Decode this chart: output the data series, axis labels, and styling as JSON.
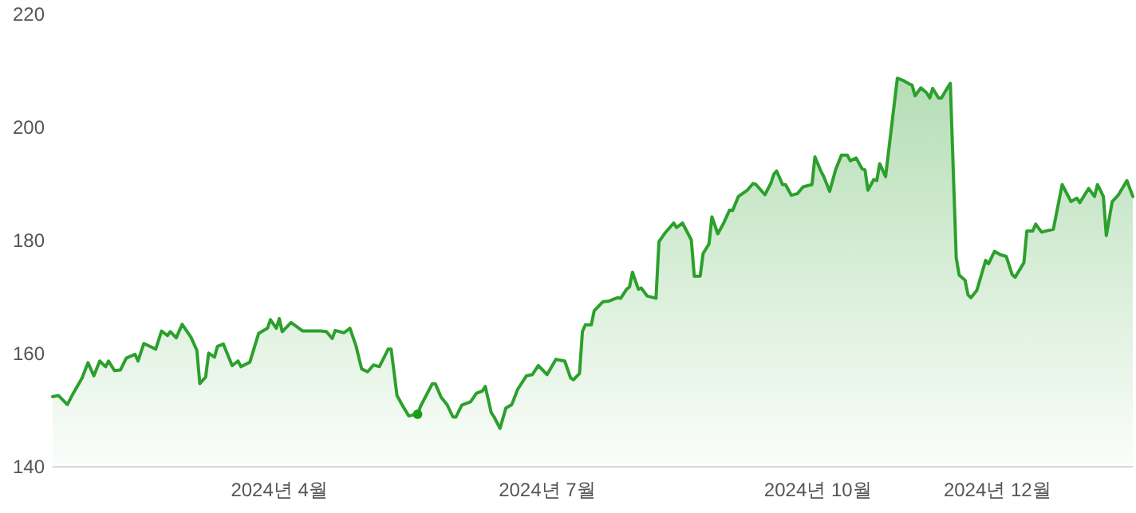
{
  "chart_data": {
    "type": "area",
    "xlim": [
      "2024-01-15",
      "2025-01-16"
    ],
    "ylim": [
      140,
      220
    ],
    "yticks": [
      140,
      160,
      180,
      200,
      220
    ],
    "xticks": [
      {
        "value": "2024-04-01",
        "label": "2024년 4월"
      },
      {
        "value": "2024-07-01",
        "label": "2024년 7월"
      },
      {
        "value": "2024-10-01",
        "label": "2024년 10월"
      },
      {
        "value": "2024-12-01",
        "label": "2024년 12월"
      }
    ],
    "grid": false,
    "series": [
      {
        "color": "#2ca02c",
        "x": [
          "2024-01-15",
          "2024-01-17",
          "2024-01-20",
          "2024-01-22",
          "2024-01-25",
          "2024-01-27",
          "2024-01-29",
          "2024-01-31",
          "2024-02-02",
          "2024-02-03",
          "2024-02-05",
          "2024-02-07",
          "2024-02-09",
          "2024-02-12",
          "2024-02-13",
          "2024-02-15",
          "2024-02-19",
          "2024-02-21",
          "2024-02-23",
          "2024-02-24",
          "2024-02-26",
          "2024-02-28",
          "2024-03-02",
          "2024-03-04",
          "2024-03-05",
          "2024-03-07",
          "2024-03-08",
          "2024-03-10",
          "2024-03-11",
          "2024-03-13",
          "2024-03-16",
          "2024-03-18",
          "2024-03-19",
          "2024-03-22",
          "2024-03-25",
          "2024-03-28",
          "2024-03-29",
          "2024-03-31",
          "2024-04-01",
          "2024-04-02",
          "2024-04-05",
          "2024-04-09",
          "2024-04-15",
          "2024-04-17",
          "2024-04-19",
          "2024-04-20",
          "2024-04-23",
          "2024-04-25",
          "2024-04-27",
          "2024-04-29",
          "2024-05-01",
          "2024-05-03",
          "2024-05-05",
          "2024-05-08",
          "2024-05-09",
          "2024-05-11",
          "2024-05-13",
          "2024-05-15",
          "2024-05-18",
          "2024-05-19",
          "2024-05-23",
          "2024-05-24",
          "2024-05-26",
          "2024-05-28",
          "2024-05-30",
          "2024-05-31",
          "2024-06-02",
          "2024-06-05",
          "2024-06-07",
          "2024-06-09",
          "2024-06-10",
          "2024-06-12",
          "2024-06-13",
          "2024-06-15",
          "2024-06-17",
          "2024-06-19",
          "2024-06-21",
          "2024-06-24",
          "2024-06-26",
          "2024-06-28",
          "2024-07-01",
          "2024-07-04",
          "2024-07-07",
          "2024-07-09",
          "2024-07-10",
          "2024-07-12",
          "2024-07-13",
          "2024-07-14",
          "2024-07-16",
          "2024-07-17",
          "2024-07-20",
          "2024-07-22",
          "2024-07-25",
          "2024-07-26",
          "2024-07-28",
          "2024-07-29",
          "2024-07-30",
          "2024-08-01",
          "2024-08-02",
          "2024-08-04",
          "2024-08-07",
          "2024-08-08",
          "2024-08-10",
          "2024-08-13",
          "2024-08-14",
          "2024-08-16",
          "2024-08-19",
          "2024-08-20",
          "2024-08-22",
          "2024-08-23",
          "2024-08-25",
          "2024-08-26",
          "2024-08-28",
          "2024-08-30",
          "2024-09-01",
          "2024-09-02",
          "2024-09-04",
          "2024-09-07",
          "2024-09-09",
          "2024-09-10",
          "2024-09-13",
          "2024-09-15",
          "2024-09-16",
          "2024-09-17",
          "2024-09-19",
          "2024-09-20",
          "2024-09-22",
          "2024-09-24",
          "2024-09-26",
          "2024-09-29",
          "2024-09-30",
          "2024-10-02",
          "2024-10-03",
          "2024-10-05",
          "2024-10-07",
          "2024-10-09",
          "2024-10-11",
          "2024-10-12",
          "2024-10-14",
          "2024-10-16",
          "2024-10-17",
          "2024-10-18",
          "2024-10-20",
          "2024-10-21",
          "2024-10-22",
          "2024-10-24",
          "2024-10-28",
          "2024-10-30",
          "2024-11-01",
          "2024-11-02",
          "2024-11-03",
          "2024-11-05",
          "2024-11-07",
          "2024-11-08",
          "2024-11-09",
          "2024-11-11",
          "2024-11-12",
          "2024-11-14",
          "2024-11-15",
          "2024-11-17",
          "2024-11-18",
          "2024-11-20",
          "2024-11-21",
          "2024-11-22",
          "2024-11-24",
          "2024-11-27",
          "2024-11-28",
          "2024-11-30",
          "2024-12-02",
          "2024-12-04",
          "2024-12-06",
          "2024-12-07",
          "2024-12-10",
          "2024-12-11",
          "2024-12-13",
          "2024-12-14",
          "2024-12-16",
          "2024-12-20",
          "2024-12-23",
          "2024-12-26",
          "2024-12-28",
          "2024-12-29",
          "2025-01-01",
          "2025-01-03",
          "2025-01-04",
          "2025-01-06",
          "2025-01-07",
          "2025-01-09",
          "2025-01-11",
          "2025-01-14",
          "2025-01-16"
        ],
        "values": [
          152.4,
          152.6,
          151.0,
          153.0,
          155.7,
          158.4,
          156.1,
          158.7,
          157.7,
          158.7,
          157.0,
          157.1,
          159.2,
          159.9,
          158.7,
          161.8,
          160.8,
          164.0,
          163.2,
          163.9,
          162.8,
          165.2,
          162.9,
          160.6,
          154.7,
          155.9,
          160.1,
          159.4,
          161.3,
          161.7,
          157.9,
          158.7,
          157.7,
          158.5,
          163.6,
          164.5,
          166.0,
          164.5,
          166.2,
          163.9,
          165.5,
          164.0,
          164.0,
          163.9,
          162.7,
          164.1,
          163.7,
          164.5,
          161.5,
          157.3,
          156.8,
          158.0,
          157.7,
          160.8,
          160.8,
          152.6,
          150.7,
          149.0,
          149.3,
          150.7,
          154.7,
          154.7,
          152.3,
          151.0,
          148.8,
          148.8,
          150.9,
          151.5,
          153.0,
          153.4,
          154.2,
          149.6,
          148.8,
          146.8,
          150.4,
          151.0,
          153.7,
          156.1,
          156.3,
          157.9,
          156.3,
          159.0,
          158.7,
          155.7,
          155.4,
          156.5,
          163.9,
          165.1,
          165.1,
          167.6,
          169.2,
          169.3,
          169.9,
          169.8,
          171.4,
          171.8,
          174.4,
          171.4,
          171.6,
          170.2,
          169.8,
          179.8,
          181.3,
          183.1,
          182.3,
          183.1,
          180.1,
          173.7,
          173.7,
          177.7,
          179.4,
          184.2,
          181.2,
          183.1,
          185.4,
          185.3,
          187.8,
          188.9,
          190.1,
          189.9,
          188.1,
          190.1,
          191.7,
          192.3,
          189.9,
          189.9,
          188.0,
          188.3,
          189.5,
          189.9,
          194.8,
          192.3,
          191.3,
          188.7,
          192.5,
          195.1,
          195.1,
          194.1,
          194.6,
          192.7,
          192.5,
          188.9,
          190.8,
          190.6,
          193.6,
          191.3,
          208.7,
          208.3,
          207.7,
          207.5,
          205.6,
          207.0,
          206.1,
          205.2,
          206.9,
          205.2,
          205.2,
          207.0,
          207.8,
          177.0,
          173.9,
          173.0,
          170.4,
          169.9,
          171.2,
          176.5,
          175.9,
          178.1,
          177.5,
          177.2,
          174.0,
          173.5,
          176.1,
          181.7,
          181.7,
          182.9,
          181.5,
          182.0,
          189.9,
          186.9,
          187.5,
          186.7,
          189.2,
          187.8,
          189.9,
          187.8,
          180.9,
          186.9,
          188.0,
          190.6,
          187.8
        ]
      },
      {
        "type": "scatter",
        "color": "#1a9e1a",
        "marker": "circle",
        "x": [
          "2024-05-18"
        ],
        "values": [
          149.3
        ]
      }
    ]
  }
}
